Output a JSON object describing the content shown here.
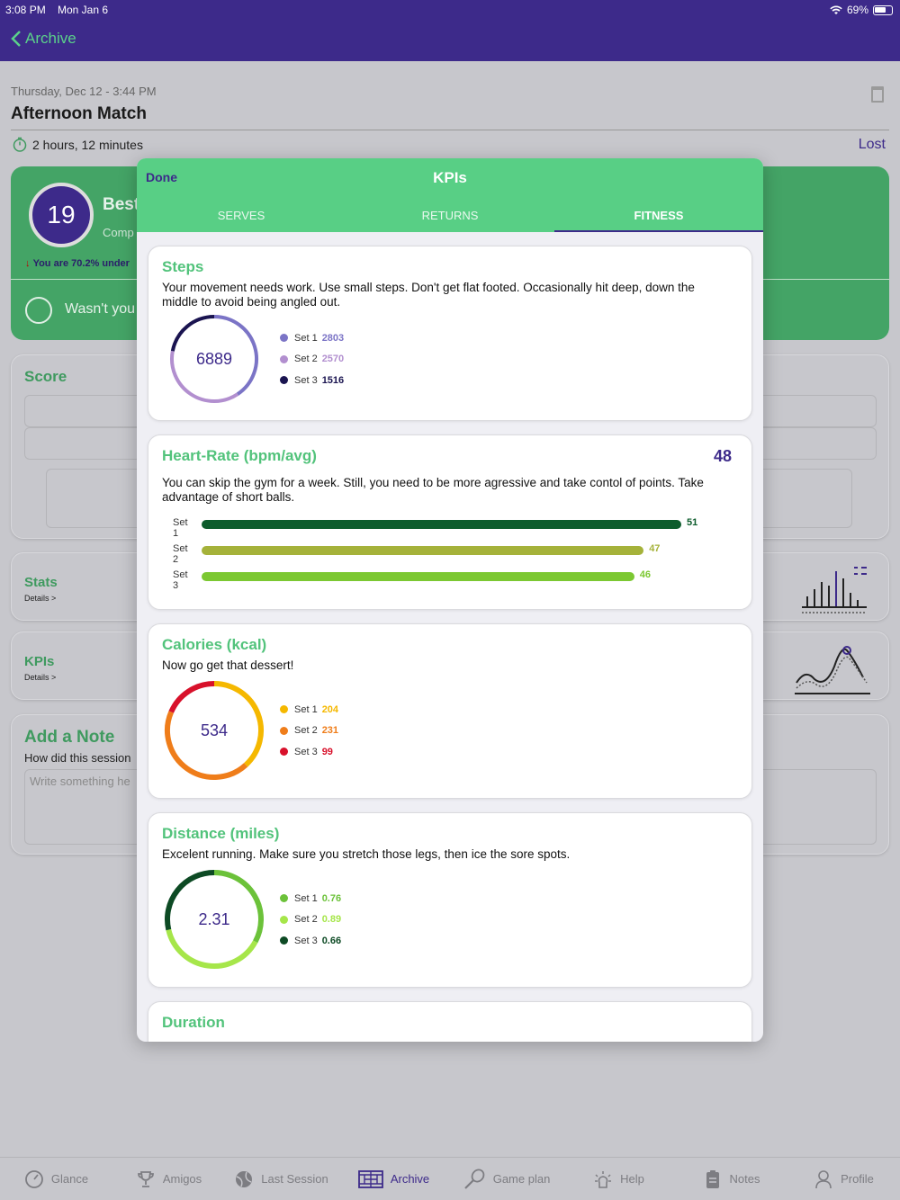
{
  "status_bar": {
    "time": "3:08 PM",
    "date": "Mon Jan 6",
    "battery": "69%"
  },
  "nav": {
    "back_label": "Archive"
  },
  "background": {
    "session_date": "Thursday, Dec 12 - 3:44 PM",
    "session_title": "Afternoon Match",
    "duration": "2 hours, 12 minutes",
    "result": "Lost",
    "rank": "19",
    "best_label": "Best",
    "comp_label": "Comp",
    "under_text": "You are 70.2% under",
    "wasnt_text": "Wasn't you",
    "score_title": "Score",
    "stats_title": "Stats",
    "stats_details": "Details >",
    "kpis_title": "KPIs",
    "kpis_details": "Details >",
    "note_title": "Add a Note",
    "note_question": "How did this session",
    "note_placeholder": "Write something he"
  },
  "modal": {
    "done_label": "Done",
    "title": "KPIs",
    "tabs": [
      "SERVES",
      "RETURNS",
      "FITNESS"
    ],
    "active_tab": 2
  },
  "cards": {
    "steps": {
      "title": "Steps",
      "text": "Your movement needs work. Use small steps. Don't get flat footed. Occasionally hit deep, down the middle to avoid being angled out.",
      "total": "6889",
      "sets": [
        {
          "label": "Set 1",
          "value": "2803",
          "color": "#7b74c6"
        },
        {
          "label": "Set 2",
          "value": "2570",
          "color": "#b28fcf"
        },
        {
          "label": "Set 3",
          "value": "1516",
          "color": "#1a1450"
        }
      ]
    },
    "heart": {
      "title": "Heart-Rate (bpm/avg)",
      "value": "48",
      "text": "You can skip the gym for a week. Still, you need to be more agressive and take contol of points. Take advantage of short balls.",
      "sets": [
        {
          "label": "Set 1",
          "value": "51",
          "color": "#0d5c2c"
        },
        {
          "label": "Set 2",
          "value": "47",
          "color": "#a5b23a"
        },
        {
          "label": "Set 3",
          "value": "46",
          "color": "#7cc832"
        }
      ]
    },
    "calories": {
      "title": "Calories (kcal)",
      "text": "Now go get that dessert!",
      "total": "534",
      "sets": [
        {
          "label": "Set 1",
          "value": "204",
          "color": "#f5b800"
        },
        {
          "label": "Set 2",
          "value": "231",
          "color": "#ef7d1a"
        },
        {
          "label": "Set 3",
          "value": "99",
          "color": "#d8112b"
        }
      ]
    },
    "distance": {
      "title": "Distance (miles)",
      "text": "Excelent running. Make sure you stretch those legs, then ice the sore spots.",
      "total": "2.31",
      "sets": [
        {
          "label": "Set 1",
          "value": "0.76",
          "color": "#6cc23a"
        },
        {
          "label": "Set 2",
          "value": "0.89",
          "color": "#a6e64a"
        },
        {
          "label": "Set 3",
          "value": "0.66",
          "color": "#0d4a24"
        }
      ]
    },
    "duration": {
      "title": "Duration"
    }
  },
  "tabbar": [
    {
      "label": "Glance",
      "icon": "gauge-icon"
    },
    {
      "label": "Amigos",
      "icon": "trophy-icon"
    },
    {
      "label": "Last Session",
      "icon": "ball-icon"
    },
    {
      "label": "Archive",
      "icon": "court-icon"
    },
    {
      "label": "Game plan",
      "icon": "racket-icon"
    },
    {
      "label": "Help",
      "icon": "help-icon"
    },
    {
      "label": "Notes",
      "icon": "clipboard-icon"
    },
    {
      "label": "Profile",
      "icon": "person-icon"
    }
  ],
  "active_tabbar": 3
}
